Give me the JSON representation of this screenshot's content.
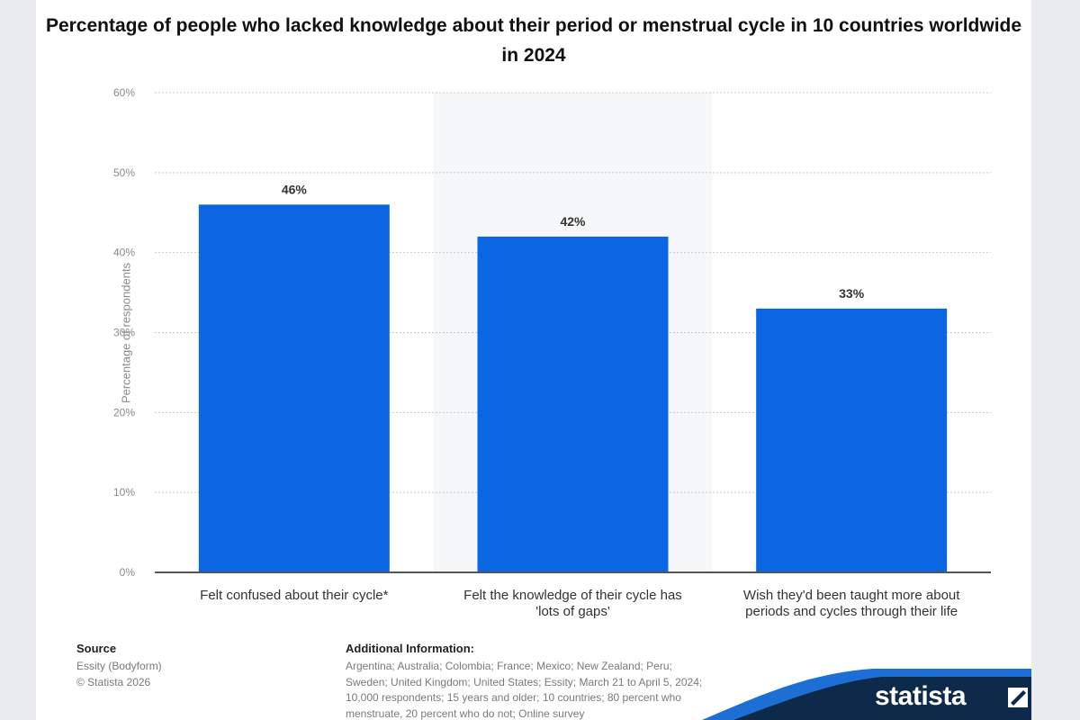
{
  "chart_data": {
    "type": "bar",
    "title": "Percentage of people who lacked knowledge about their period or menstrual cycle in 10 countries worldwide in 2024",
    "categories": [
      [
        "Felt confused about their cycle*"
      ],
      [
        "Felt the knowledge of their cycle has",
        "'lots of gaps'"
      ],
      [
        "Wish they'd been taught more about",
        "periods and cycles through their life"
      ]
    ],
    "values": [
      46,
      42,
      33
    ],
    "value_labels": [
      "46%",
      "42%",
      "33%"
    ],
    "ylabel": "Percentage of respondents",
    "ylim": [
      0,
      60
    ],
    "yticks": [
      0,
      10,
      20,
      30,
      40,
      50,
      60
    ],
    "ytick_labels": [
      "0%",
      "10%",
      "20%",
      "30%",
      "40%",
      "50%",
      "60%"
    ],
    "grid": true,
    "bar_color": "#0b66e4"
  },
  "footer": {
    "source_heading": "Source",
    "source_lines": [
      "Essity (Bodyform)",
      "© Statista 2026"
    ],
    "info_heading": "Additional Information:",
    "info_lines": [
      "Argentina; Australia; Colombia; France; Mexico; New Zealand; Peru;",
      "Sweden; United Kingdom; United States; Essity; March 21 to April 5, 2024;",
      "10,000 respondents; 15 years and older; 10 countries; 80 percent who",
      "menstruate, 20 percent who do not; Online survey"
    ]
  },
  "brand": {
    "logo_text": "statista",
    "color": "#0e2a4a",
    "accent": "#1d6fd6"
  },
  "page_colors": {
    "background": "#e9ebee",
    "card": "#ffffff",
    "highlight_band": "#f6f7f8"
  }
}
